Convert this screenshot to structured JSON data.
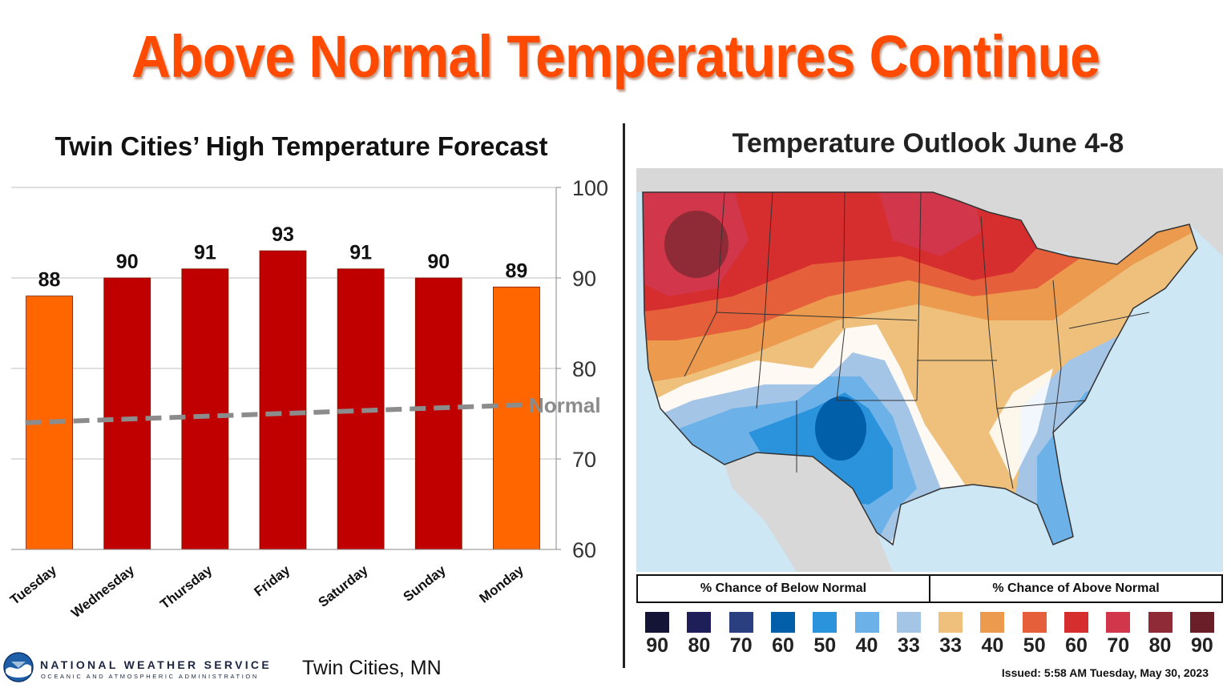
{
  "title": "Above Normal Temperatures Continue",
  "left_panel": {
    "title": "Twin Cities’ High Temperature Forecast"
  },
  "chart_data": {
    "type": "bar",
    "title": "Twin Cities’ High Temperature Forecast",
    "categories": [
      "Tuesday",
      "Wednesday",
      "Thursday",
      "Friday",
      "Saturday",
      "Sunday",
      "Monday"
    ],
    "values": [
      88,
      90,
      91,
      93,
      91,
      90,
      89
    ],
    "bar_colors": [
      "#ff6600",
      "#c00000",
      "#c00000",
      "#c00000",
      "#c00000",
      "#c00000",
      "#ff6600"
    ],
    "ylim": [
      60,
      100
    ],
    "yticks": [
      60,
      70,
      80,
      90,
      100
    ],
    "y_axis_side": "right",
    "grid": true,
    "normal_line": {
      "label": "Normal",
      "start": 74,
      "end": 76,
      "color": "#8c8c8c"
    }
  },
  "right_panel": {
    "title": "Temperature Outlook June 4-8",
    "legend": {
      "below_label": "% Chance of Below Normal",
      "above_label": "% Chance of Above Normal",
      "items": [
        {
          "label": "90",
          "color": "#141436"
        },
        {
          "label": "80",
          "color": "#1e1e58"
        },
        {
          "label": "70",
          "color": "#293f80"
        },
        {
          "label": "60",
          "color": "#005fa8"
        },
        {
          "label": "50",
          "color": "#2b93dc"
        },
        {
          "label": "40",
          "color": "#6cb2e8"
        },
        {
          "label": "33",
          "color": "#a4c5e6"
        },
        {
          "label": "33",
          "color": "#eec07c"
        },
        {
          "label": "40",
          "color": "#ec9a4e"
        },
        {
          "label": "50",
          "color": "#e5603a"
        },
        {
          "label": "60",
          "color": "#d62e2e"
        },
        {
          "label": "70",
          "color": "#d2364b"
        },
        {
          "label": "80",
          "color": "#8e2b36"
        },
        {
          "label": "90",
          "color": "#6a1f28"
        }
      ]
    },
    "issued": "Issued: 5:58 AM Tuesday, May 30, 2023"
  },
  "footer": {
    "agency": "NATIONAL WEATHER SERVICE",
    "agency_sub": "OCEANIC AND ATMOSPHERIC ADMINISTRATION",
    "logo": "noaa-logo",
    "office": "Twin Cities, MN"
  }
}
